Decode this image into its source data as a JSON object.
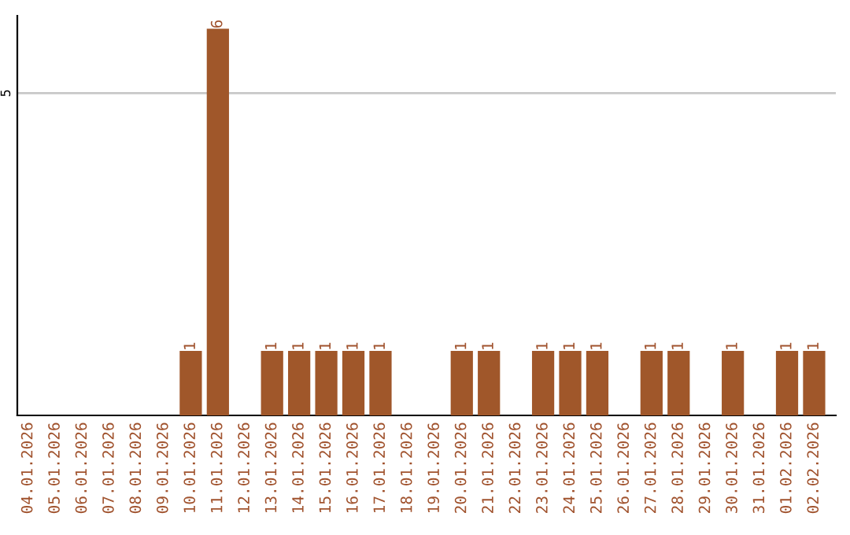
{
  "chart_data": {
    "type": "bar",
    "categories": [
      "04.01.2026",
      "05.01.2026",
      "06.01.2026",
      "07.01.2026",
      "08.01.2026",
      "09.01.2026",
      "10.01.2026",
      "11.01.2026",
      "12.01.2026",
      "13.01.2026",
      "14.01.2026",
      "15.01.2026",
      "16.01.2026",
      "17.01.2026",
      "18.01.2026",
      "19.01.2026",
      "20.01.2026",
      "21.01.2026",
      "22.01.2026",
      "23.01.2026",
      "24.01.2026",
      "25.01.2026",
      "26.01.2026",
      "27.01.2026",
      "28.01.2026",
      "29.01.2026",
      "30.01.2026",
      "31.01.2026",
      "01.02.2026",
      "02.02.2026"
    ],
    "values": [
      0,
      0,
      0,
      0,
      0,
      0,
      1,
      6,
      0,
      1,
      1,
      1,
      1,
      1,
      0,
      0,
      1,
      1,
      0,
      1,
      1,
      1,
      0,
      1,
      1,
      0,
      1,
      0,
      1,
      1
    ],
    "value_labels": [
      null,
      null,
      null,
      null,
      null,
      null,
      "1",
      "6",
      null,
      "1",
      "1",
      "1",
      "1",
      "1",
      null,
      null,
      "1",
      "1",
      null,
      "1",
      "1",
      "1",
      null,
      "1",
      "1",
      null,
      "1",
      null,
      "1",
      "1"
    ],
    "color": "#a0572a",
    "ylim": [
      0,
      6.2
    ],
    "yticks": [
      5
    ],
    "grid": "y"
  }
}
